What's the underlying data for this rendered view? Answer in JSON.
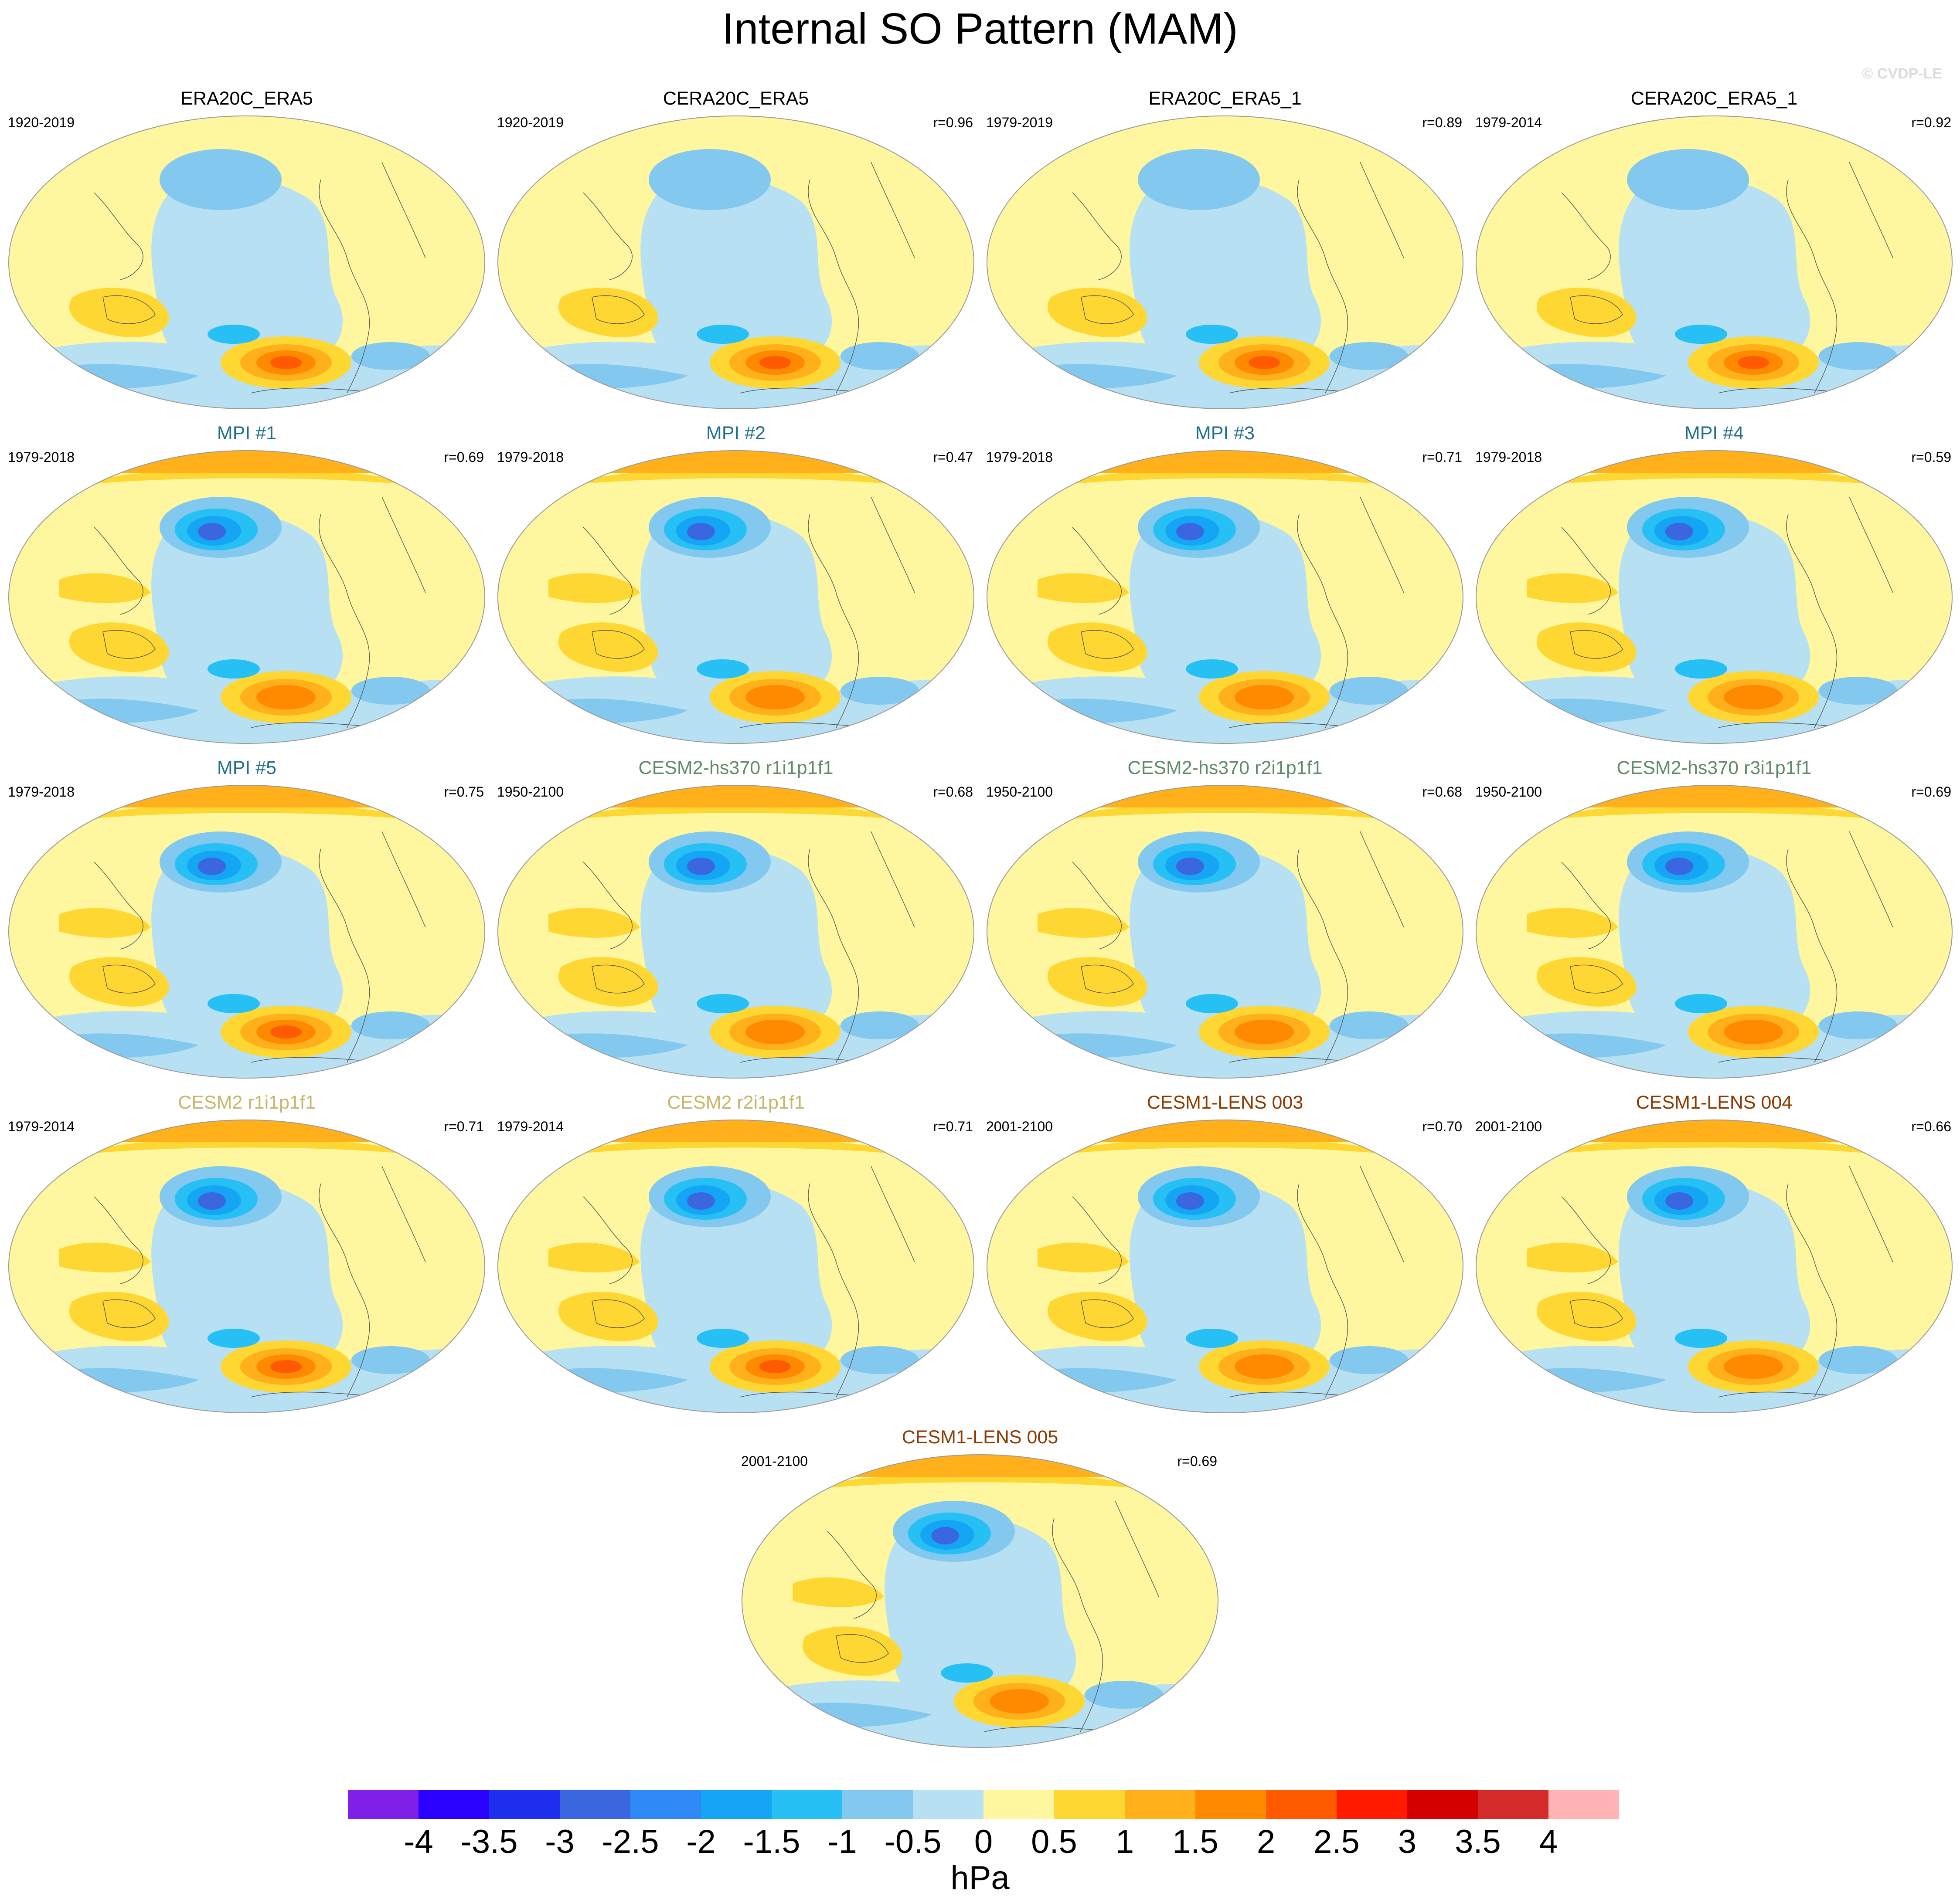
{
  "chart_data": {
    "type": "heatmap",
    "subtype": "global contour maps (Robinson projection)",
    "title": "Internal SO Pattern (MAM)",
    "watermark": "© CVDP-LE",
    "colorbar": {
      "unit": "hPa",
      "ticks": [
        "-4",
        "-3.5",
        "-3",
        "-2.5",
        "-2",
        "-1.5",
        "-1",
        "-0.5",
        "0",
        "0.5",
        "1",
        "1.5",
        "2",
        "2.5",
        "3",
        "3.5",
        "4"
      ],
      "colors": [
        "#7f20e8",
        "#2a00ff",
        "#1f2ff0",
        "#3a66e0",
        "#2e88f5",
        "#14a5f5",
        "#27c0f5",
        "#83c8ee",
        "#b7e0f3",
        "#fff7a0",
        "#ffd733",
        "#ffb01a",
        "#ff8a00",
        "#ff5a00",
        "#ff1a00",
        "#d40000",
        "#d42a2a",
        "#ffb3b3"
      ]
    },
    "panels": [
      {
        "title": "ERA20C_ERA5",
        "title_color": "#000000",
        "period": "1920-2019",
        "r": ""
      },
      {
        "title": "CERA20C_ERA5",
        "title_color": "#000000",
        "period": "1920-2019",
        "r": "r=0.96"
      },
      {
        "title": "ERA20C_ERA5_1",
        "title_color": "#000000",
        "period": "1979-2019",
        "r": "r=0.89"
      },
      {
        "title": "CERA20C_ERA5_1",
        "title_color": "#000000",
        "period": "1979-2014",
        "r": "r=0.92"
      },
      {
        "title": "MPI #1",
        "title_color": "#1f6e8c",
        "period": "1979-2018",
        "r": "r=0.69"
      },
      {
        "title": "MPI #2",
        "title_color": "#1f6e8c",
        "period": "1979-2018",
        "r": "r=0.47"
      },
      {
        "title": "MPI #3",
        "title_color": "#1f6e8c",
        "period": "1979-2018",
        "r": "r=0.71"
      },
      {
        "title": "MPI #4",
        "title_color": "#1f6e8c",
        "period": "1979-2018",
        "r": "r=0.59"
      },
      {
        "title": "MPI #5",
        "title_color": "#1f6e8c",
        "period": "1979-2018",
        "r": "r=0.75"
      },
      {
        "title": "CESM2-hs370 r1i1p1f1",
        "title_color": "#5f8a6a",
        "period": "1950-2100",
        "r": "r=0.68"
      },
      {
        "title": "CESM2-hs370 r2i1p1f1",
        "title_color": "#5f8a6a",
        "period": "1950-2100",
        "r": "r=0.68"
      },
      {
        "title": "CESM2-hs370 r3i1p1f1",
        "title_color": "#5f8a6a",
        "period": "1950-2100",
        "r": "r=0.69"
      },
      {
        "title": "CESM2 r1i1p1f1",
        "title_color": "#c9b56a",
        "period": "1979-2014",
        "r": "r=0.71"
      },
      {
        "title": "CESM2 r2i1p1f1",
        "title_color": "#c9b56a",
        "period": "1979-2014",
        "r": "r=0.71"
      },
      {
        "title": "CESM1-LENS 003",
        "title_color": "#8b3a00",
        "period": "2001-2100",
        "r": "r=0.70"
      },
      {
        "title": "CESM1-LENS 004",
        "title_color": "#8b3a00",
        "period": "2001-2100",
        "r": "r=0.66"
      },
      {
        "title": "CESM1-LENS 005",
        "title_color": "#8b3a00",
        "period": "2001-2100",
        "r": "r=0.69"
      }
    ]
  }
}
